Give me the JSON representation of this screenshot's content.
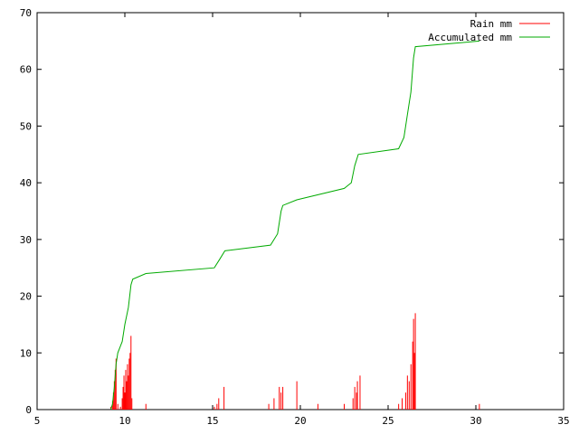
{
  "chart_data": {
    "type": "line",
    "title": "",
    "xlabel": "",
    "ylabel": "",
    "xlim": [
      5,
      35
    ],
    "ylim": [
      0,
      70
    ],
    "x_ticks": [
      "5",
      "10",
      "15",
      "20",
      "25",
      "30",
      "35"
    ],
    "y_ticks": [
      "0",
      "10",
      "20",
      "30",
      "40",
      "50",
      "60",
      "70"
    ],
    "grid": false,
    "legend_position": "top-right",
    "series": [
      {
        "name": "Rain mm",
        "style": "impulses",
        "color": "#ff0000",
        "points": [
          [
            9.2,
            0.5
          ],
          [
            9.3,
            1.5
          ],
          [
            9.35,
            3
          ],
          [
            9.4,
            5
          ],
          [
            9.45,
            7
          ],
          [
            9.5,
            9
          ],
          [
            9.6,
            1
          ],
          [
            9.75,
            0.5
          ],
          [
            9.85,
            2
          ],
          [
            9.9,
            4
          ],
          [
            9.95,
            6
          ],
          [
            10.0,
            3
          ],
          [
            10.05,
            7
          ],
          [
            10.1,
            5
          ],
          [
            10.15,
            8
          ],
          [
            10.2,
            6
          ],
          [
            10.25,
            9
          ],
          [
            10.3,
            10
          ],
          [
            10.35,
            13
          ],
          [
            10.4,
            2
          ],
          [
            11.2,
            1
          ],
          [
            15.1,
            0.5
          ],
          [
            15.25,
            1
          ],
          [
            15.35,
            2
          ],
          [
            15.65,
            4
          ],
          [
            18.2,
            1
          ],
          [
            18.5,
            2
          ],
          [
            18.8,
            4
          ],
          [
            18.9,
            3
          ],
          [
            19.0,
            4
          ],
          [
            19.8,
            5
          ],
          [
            21.0,
            1
          ],
          [
            22.5,
            1
          ],
          [
            23.0,
            2
          ],
          [
            23.1,
            4
          ],
          [
            23.2,
            3
          ],
          [
            23.25,
            5
          ],
          [
            23.4,
            6
          ],
          [
            25.6,
            1
          ],
          [
            25.8,
            2
          ],
          [
            26.0,
            3
          ],
          [
            26.1,
            6
          ],
          [
            26.2,
            5
          ],
          [
            26.3,
            8
          ],
          [
            26.4,
            12
          ],
          [
            26.45,
            16
          ],
          [
            26.5,
            10
          ],
          [
            26.55,
            17
          ],
          [
            30.2,
            1
          ]
        ]
      },
      {
        "name": "Accumulated mm",
        "style": "lines",
        "color": "#00aa00",
        "points": [
          [
            9.2,
            0
          ],
          [
            9.3,
            1
          ],
          [
            9.4,
            4
          ],
          [
            9.5,
            8
          ],
          [
            9.6,
            10
          ],
          [
            9.85,
            12
          ],
          [
            10.0,
            15
          ],
          [
            10.2,
            18
          ],
          [
            10.35,
            22
          ],
          [
            10.45,
            23
          ],
          [
            11.2,
            24
          ],
          [
            15.1,
            25
          ],
          [
            15.4,
            26.5
          ],
          [
            15.7,
            28
          ],
          [
            18.3,
            29
          ],
          [
            18.7,
            31
          ],
          [
            18.9,
            35
          ],
          [
            19.0,
            36
          ],
          [
            19.8,
            37
          ],
          [
            22.5,
            39
          ],
          [
            22.9,
            40
          ],
          [
            23.1,
            43
          ],
          [
            23.3,
            45
          ],
          [
            25.6,
            46
          ],
          [
            25.9,
            48
          ],
          [
            26.1,
            52
          ],
          [
            26.3,
            56
          ],
          [
            26.45,
            62
          ],
          [
            26.55,
            64
          ],
          [
            30.2,
            65
          ]
        ]
      }
    ]
  }
}
